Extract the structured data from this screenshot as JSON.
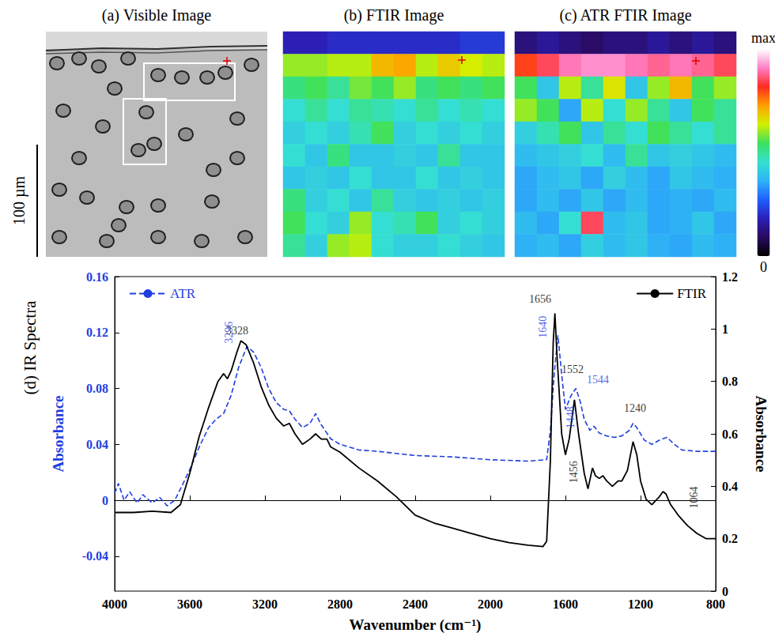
{
  "image": {
    "title": "(a) Visible Image",
    "scale_bar": "100 µm"
  },
  "chart_data": [
    {
      "type": "heatmap",
      "title": "(b) FTIR Image",
      "tick_labels": false,
      "colorbar": {
        "range": [
          0,
          1
        ],
        "ticks": [
          0,
          {
            "value": 1,
            "label": "max"
          }
        ]
      },
      "cells": [
        [
          0.18,
          0.18,
          0.2,
          0.2,
          0.2,
          0.2,
          0.2,
          0.2,
          0.22,
          0.22
        ],
        [
          0.6,
          0.6,
          0.62,
          0.62,
          0.7,
          0.72,
          0.62,
          0.68,
          0.64,
          0.62
        ],
        [
          0.52,
          0.55,
          0.5,
          0.58,
          0.55,
          0.6,
          0.52,
          0.55,
          0.52,
          0.55
        ],
        [
          0.45,
          0.5,
          0.45,
          0.5,
          0.48,
          0.45,
          0.5,
          0.45,
          0.48,
          0.45
        ],
        [
          0.42,
          0.45,
          0.42,
          0.48,
          0.55,
          0.42,
          0.45,
          0.42,
          0.45,
          0.42
        ],
        [
          0.45,
          0.4,
          0.52,
          0.4,
          0.4,
          0.42,
          0.4,
          0.5,
          0.4,
          0.4
        ],
        [
          0.4,
          0.42,
          0.4,
          0.45,
          0.4,
          0.4,
          0.45,
          0.4,
          0.42,
          0.4
        ],
        [
          0.52,
          0.42,
          0.45,
          0.4,
          0.5,
          0.42,
          0.4,
          0.42,
          0.4,
          0.42
        ],
        [
          0.55,
          0.45,
          0.42,
          0.6,
          0.45,
          0.48,
          0.55,
          0.42,
          0.45,
          0.42
        ],
        [
          0.5,
          0.42,
          0.6,
          0.62,
          0.45,
          0.42,
          0.42,
          0.45,
          0.42,
          0.4
        ]
      ]
    },
    {
      "type": "heatmap",
      "title": "(c) ATR FTIR Image",
      "tick_labels": false,
      "colorbar": {
        "range": [
          0,
          1
        ],
        "ticks": [
          0,
          {
            "value": 1,
            "label": "max"
          }
        ]
      },
      "cells": [
        [
          0.12,
          0.15,
          0.12,
          0.1,
          0.12,
          0.12,
          0.15,
          0.12,
          0.15,
          0.12
        ],
        [
          0.8,
          0.85,
          0.9,
          0.92,
          0.92,
          0.9,
          0.88,
          0.9,
          0.88,
          0.85
        ],
        [
          0.55,
          0.4,
          0.62,
          0.5,
          0.65,
          0.4,
          0.6,
          0.7,
          0.55,
          0.6
        ],
        [
          0.6,
          0.55,
          0.35,
          0.62,
          0.45,
          0.6,
          0.5,
          0.4,
          0.55,
          0.5
        ],
        [
          0.42,
          0.48,
          0.55,
          0.4,
          0.5,
          0.45,
          0.55,
          0.5,
          0.45,
          0.5
        ],
        [
          0.38,
          0.4,
          0.42,
          0.45,
          0.38,
          0.5,
          0.4,
          0.42,
          0.4,
          0.38
        ],
        [
          0.35,
          0.38,
          0.4,
          0.35,
          0.42,
          0.38,
          0.35,
          0.4,
          0.38,
          0.36
        ],
        [
          0.35,
          0.38,
          0.35,
          0.4,
          0.35,
          0.38,
          0.35,
          0.36,
          0.35,
          0.38
        ],
        [
          0.38,
          0.35,
          0.45,
          0.85,
          0.38,
          0.4,
          0.35,
          0.36,
          0.4,
          0.35
        ],
        [
          0.36,
          0.38,
          0.35,
          0.42,
          0.38,
          0.4,
          0.36,
          0.35,
          0.38,
          0.36
        ]
      ]
    },
    {
      "type": "line",
      "title": "(d) IR Spectra",
      "xlabel": "Wavenumber (cm⁻¹)",
      "ylabel": "Absorbance",
      "y2label": "Absorbance",
      "xlim": [
        4000,
        800
      ],
      "xticks": [
        4000,
        3600,
        3200,
        2800,
        2400,
        2000,
        1600,
        1200,
        800
      ],
      "ylim": [
        -0.065,
        0.16
      ],
      "yticks": [
        -0.04,
        0,
        0.04,
        0.08,
        0.12,
        0.16
      ],
      "y2lim": [
        0,
        1.2
      ],
      "y2ticks": [
        0,
        0.2,
        0.4,
        0.6,
        0.8,
        1,
        1.2
      ],
      "grid": false,
      "legend": "top",
      "series": [
        {
          "name": "ATR",
          "color": "#1f3fdf",
          "line_style": "dashed",
          "axis": "y",
          "x": [
            4000,
            3980,
            3950,
            3920,
            3880,
            3850,
            3800,
            3760,
            3720,
            3680,
            3650,
            3600,
            3550,
            3500,
            3460,
            3420,
            3380,
            3340,
            3296,
            3260,
            3220,
            3180,
            3140,
            3100,
            3070,
            3040,
            3000,
            2960,
            2930,
            2900,
            2850,
            2800,
            2700,
            2600,
            2400,
            2200,
            2000,
            1800,
            1700,
            1680,
            1660,
            1640,
            1620,
            1600,
            1570,
            1544,
            1520,
            1500,
            1470,
            1448,
            1420,
            1380,
            1340,
            1300,
            1260,
            1240,
            1220,
            1180,
            1140,
            1100,
            1060,
            1020,
            980,
            900,
            800
          ],
          "values": [
            0.005,
            0.012,
            0.0,
            0.006,
            -0.002,
            0.004,
            -0.002,
            0.002,
            -0.004,
            0.0,
            0.008,
            0.022,
            0.038,
            0.052,
            0.058,
            0.062,
            0.075,
            0.095,
            0.11,
            0.106,
            0.095,
            0.08,
            0.07,
            0.065,
            0.064,
            0.058,
            0.052,
            0.055,
            0.062,
            0.054,
            0.044,
            0.04,
            0.036,
            0.035,
            0.032,
            0.031,
            0.029,
            0.028,
            0.029,
            0.05,
            0.09,
            0.118,
            0.09,
            0.065,
            0.075,
            0.08,
            0.07,
            0.058,
            0.05,
            0.053,
            0.048,
            0.046,
            0.045,
            0.046,
            0.05,
            0.055,
            0.052,
            0.043,
            0.04,
            0.043,
            0.045,
            0.04,
            0.036,
            0.035,
            0.035
          ]
        },
        {
          "name": "FTIR",
          "color": "#000000",
          "line_style": "solid",
          "axis": "y2",
          "x": [
            4000,
            3900,
            3800,
            3700,
            3650,
            3600,
            3550,
            3500,
            3450,
            3420,
            3400,
            3380,
            3350,
            3328,
            3300,
            3260,
            3220,
            3180,
            3140,
            3100,
            3070,
            3040,
            3000,
            2960,
            2930,
            2900,
            2870,
            2850,
            2800,
            2700,
            2600,
            2500,
            2400,
            2300,
            2200,
            2100,
            2000,
            1900,
            1800,
            1720,
            1700,
            1680,
            1665,
            1656,
            1645,
            1620,
            1600,
            1580,
            1552,
            1530,
            1500,
            1480,
            1456,
            1440,
            1420,
            1400,
            1380,
            1350,
            1320,
            1300,
            1270,
            1240,
            1220,
            1200,
            1170,
            1140,
            1100,
            1080,
            1064,
            1040,
            1000,
            950,
            900,
            850,
            800
          ],
          "values": [
            0.3,
            0.3,
            0.305,
            0.3,
            0.33,
            0.45,
            0.59,
            0.7,
            0.8,
            0.83,
            0.81,
            0.84,
            0.91,
            0.955,
            0.94,
            0.87,
            0.78,
            0.71,
            0.66,
            0.63,
            0.64,
            0.6,
            0.56,
            0.58,
            0.6,
            0.58,
            0.58,
            0.55,
            0.53,
            0.47,
            0.42,
            0.36,
            0.29,
            0.26,
            0.24,
            0.22,
            0.2,
            0.185,
            0.175,
            0.17,
            0.19,
            0.5,
            0.95,
            1.06,
            0.9,
            0.6,
            0.52,
            0.58,
            0.73,
            0.6,
            0.45,
            0.39,
            0.47,
            0.44,
            0.43,
            0.44,
            0.42,
            0.4,
            0.42,
            0.42,
            0.46,
            0.57,
            0.52,
            0.42,
            0.35,
            0.33,
            0.36,
            0.38,
            0.37,
            0.33,
            0.29,
            0.25,
            0.22,
            0.2,
            0.2
          ]
        }
      ],
      "annotations": [
        {
          "text": "3328",
          "x": 3328,
          "y": 0.955,
          "axis": "y2"
        },
        {
          "text": "3296",
          "x": 3296,
          "y": 0.11,
          "axis": "y"
        },
        {
          "text": "1656",
          "x": 1656,
          "y": 1.06,
          "axis": "y2"
        },
        {
          "text": "1640",
          "x": 1640,
          "y": 0.118,
          "axis": "y"
        },
        {
          "text": "1552",
          "x": 1552,
          "y": 0.73,
          "axis": "y2"
        },
        {
          "text": "1544",
          "x": 1544,
          "y": 0.08,
          "axis": "y"
        },
        {
          "text": "1456",
          "x": 1456,
          "y": 0.47,
          "axis": "y2"
        },
        {
          "text": "1448",
          "x": 1448,
          "y": 0.053,
          "axis": "y"
        },
        {
          "text": "1240",
          "x": 1240,
          "y": 0.57,
          "axis": "y2"
        },
        {
          "text": "1064",
          "x": 1064,
          "y": 0.37,
          "axis": "y2"
        }
      ]
    }
  ]
}
